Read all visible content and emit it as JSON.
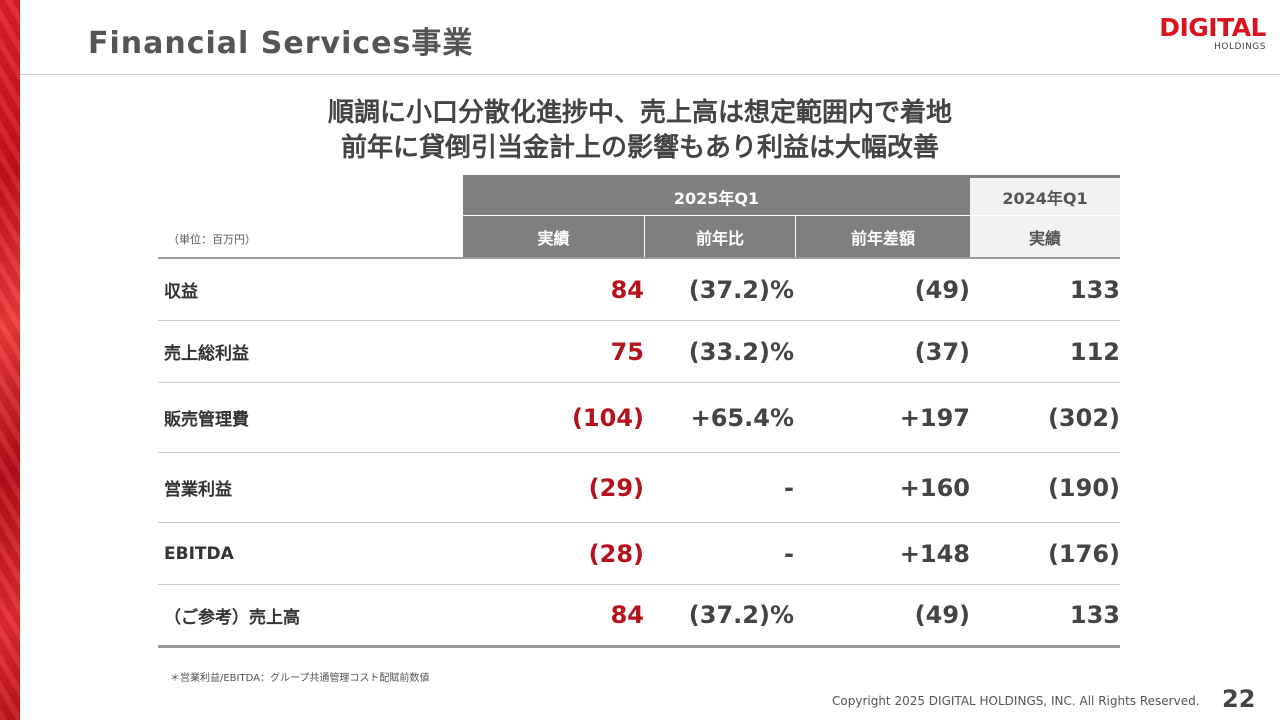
{
  "header": {
    "title": "Financial Services事業",
    "logo_main": "DIGITAL",
    "logo_sub": "HOLDINGS"
  },
  "headline": {
    "line1": "順調に小口分散化進捗中、売上高は想定範囲内で着地",
    "line2": "前年に貸倒引当金計上の影響もあり利益は大幅改善"
  },
  "table": {
    "unit": "（単位：百万円）",
    "group_headers": {
      "current": "2025年Q1",
      "previous": "2024年Q1"
    },
    "columns": [
      "実績",
      "前年比",
      "前年差額",
      "実績"
    ],
    "rows": [
      {
        "label": "収益",
        "actual": "84",
        "yoy": "(37.2)%",
        "diff": "(49)",
        "prev": "133"
      },
      {
        "label": "売上総利益",
        "actual": "75",
        "yoy": "(33.2)%",
        "diff": "(37)",
        "prev": "112"
      },
      {
        "label": "販売管理費",
        "actual": "(104)",
        "yoy": "+65.4%",
        "diff": "+197",
        "prev": "(302)"
      },
      {
        "label": "営業利益",
        "actual": "(29)",
        "yoy": "-",
        "diff": "+160",
        "prev": "(190)"
      },
      {
        "label": "EBITDA",
        "actual": "(28)",
        "yoy": "-",
        "diff": "+148",
        "prev": "(176)"
      },
      {
        "label": "（ご参考）売上高",
        "actual": "84",
        "yoy": "(37.2)%",
        "diff": "(49)",
        "prev": "133"
      }
    ]
  },
  "footnote": "＊営業利益/EBITDA：グループ共通管理コスト配賦前数値",
  "footer": {
    "copyright": "Copyright 2025 DIGITAL HOLDINGS, INC. All Rights Reserved.",
    "page_number": "22"
  },
  "colors": {
    "accent_red": "#b5121b",
    "header_gray": "#7f7f7f"
  }
}
